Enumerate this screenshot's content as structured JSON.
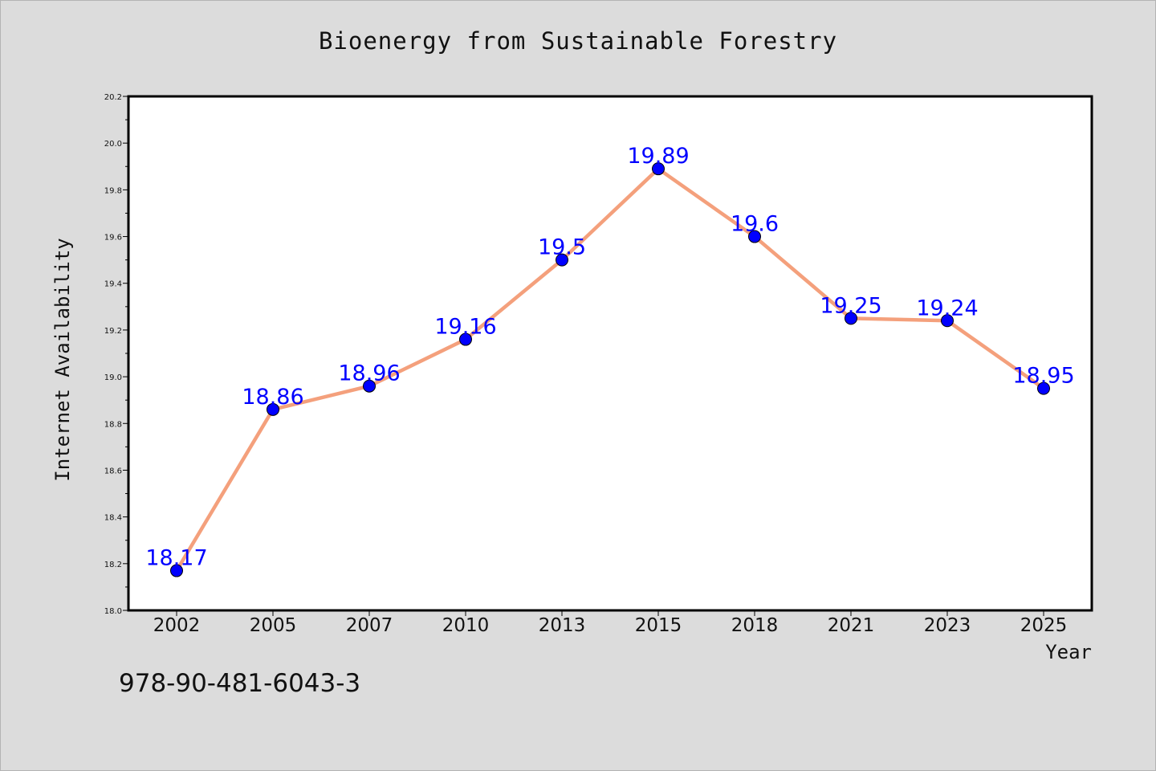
{
  "page": {
    "title": "Bioenergy from Sustainable Forestry",
    "footer_code": "978-90-481-6043-3"
  },
  "colors": {
    "background": "#dcdcdc",
    "plot_background": "#ffffff",
    "line": "#f4a07c",
    "marker": "#0000ff",
    "data_label": "#0000ff",
    "axis": "#000000"
  },
  "chart_data": {
    "type": "line",
    "title": "Bioenergy from Sustainable Forestry",
    "xlabel": "Year",
    "ylabel": "Internet Availability",
    "categories": [
      "2002",
      "2005",
      "2007",
      "2010",
      "2013",
      "2015",
      "2018",
      "2021",
      "2023",
      "2025"
    ],
    "series": [
      {
        "values": [
          18.17,
          18.86,
          18.96,
          19.16,
          19.5,
          19.89,
          19.6,
          19.25,
          19.24,
          18.95
        ],
        "labels": [
          "18.17",
          "18.86",
          "18.96",
          "19.16",
          "19.5",
          "19.89",
          "19.6",
          "19.25",
          "19.24",
          "18.95"
        ]
      }
    ],
    "ylim": [
      18.0,
      20.2
    ],
    "yticks": [
      "18.0",
      "18.2",
      "18.4",
      "18.6",
      "18.8",
      "19.0",
      "19.2",
      "19.4",
      "19.6",
      "19.8",
      "20.0",
      "20.2"
    ],
    "grid": false,
    "legend": "none"
  }
}
